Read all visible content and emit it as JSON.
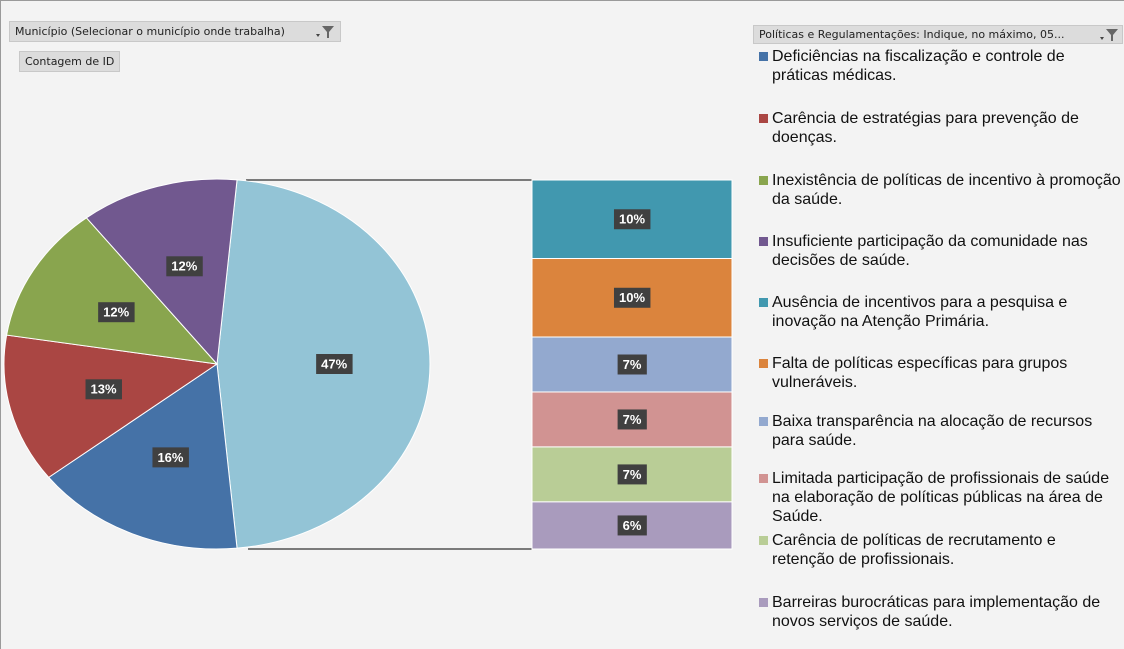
{
  "header": {
    "field": "Município (Selecionar o município onde trabalha)",
    "measure": "Contagem de ID",
    "legend_field": "Políticas e Regulamentações: Indique, no máximo, 05..."
  },
  "chart_data": {
    "type": "bar-of-pie",
    "categories": [
      "Deficiências na fiscalização e controle de práticas médicas.",
      "Carência de estratégias para prevenção de doenças.",
      "Inexistência de políticas de incentivo à promoção da saúde.",
      "Insuficiente participação da comunidade nas decisões de saúde.",
      "Ausência de incentivos para a pesquisa e inovação na Atenção Primária.",
      "Falta de políticas específicas para grupos vulneráveis.",
      "Baixa transparência na alocação de recursos para saúde.",
      "Limitada participação de profissionais de saúde na elaboração de políticas públicas na área de Saúde.",
      "Carência de políticas de recrutamento e retenção de profissionais.",
      "Barreiras burocráticas para implementação de novos serviços de saúde."
    ],
    "values": [
      16,
      13,
      12,
      12,
      10,
      10,
      7,
      7,
      7,
      6
    ],
    "value_labels": [
      "16%",
      "13%",
      "12%",
      "12%",
      "10%",
      "10%",
      "7%",
      "7%",
      "7%",
      "6%"
    ],
    "colors": [
      "#4572a7",
      "#aa4643",
      "#89a54e",
      "#71588f",
      "#4198af",
      "#db843d",
      "#93a9cf",
      "#d19392",
      "#b9cd96",
      "#a99bbd"
    ],
    "pie_count": 4,
    "other_value": 47,
    "other_label": "47%",
    "other_color": "#93c4d6"
  }
}
